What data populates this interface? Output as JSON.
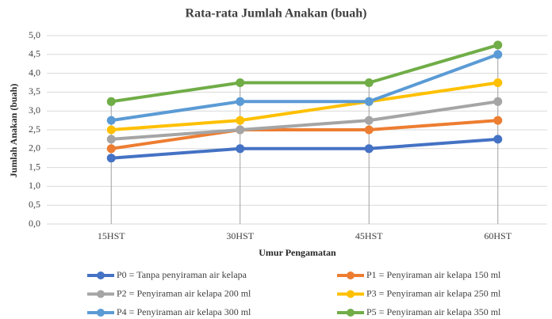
{
  "chart_data": {
    "type": "line",
    "title": "Rata-rata  Jumlah Anakan (buah)",
    "xlabel": "Umur Pengamatan",
    "ylabel": "Jumlah Anakan (buah)",
    "categories": [
      "15HST",
      "30HST",
      "45HST",
      "60HST"
    ],
    "series": [
      {
        "name": "P0 = Tanpa penyiraman air kelapa",
        "color": "#4472c4",
        "values": [
          1.75,
          2.0,
          2.0,
          2.25
        ]
      },
      {
        "name": "P1 = Penyiraman air kelapa 150 ml",
        "color": "#ed7d31",
        "values": [
          2.0,
          2.5,
          2.5,
          2.75
        ]
      },
      {
        "name": "P2 = Penyiraman air kelapa 200 ml",
        "color": "#a5a5a5",
        "values": [
          2.25,
          2.5,
          2.75,
          3.25
        ]
      },
      {
        "name": "P3 = Penyiraman air kelapa 250 ml",
        "color": "#ffc000",
        "values": [
          2.5,
          2.75,
          3.25,
          3.75
        ]
      },
      {
        "name": "P4 = Penyiraman air kelapa 300 ml",
        "color": "#5b9bd5",
        "values": [
          2.75,
          3.25,
          3.25,
          4.5
        ]
      },
      {
        "name": "P5 = Penyiraman air kelapa 350 ml",
        "color": "#70ad47",
        "values": [
          3.25,
          3.75,
          3.75,
          4.75
        ]
      }
    ],
    "ylim": [
      0,
      5
    ],
    "yticks": [
      {
        "value": 0,
        "label": "0,0"
      },
      {
        "value": 0.5,
        "label": "0,5"
      },
      {
        "value": 1,
        "label": "1,0"
      },
      {
        "value": 1.5,
        "label": "1,5"
      },
      {
        "value": 2,
        "label": "2,0"
      },
      {
        "value": 2.5,
        "label": "2,5"
      },
      {
        "value": 3,
        "label": "3,0"
      },
      {
        "value": 3.5,
        "label": "3,5"
      },
      {
        "value": 4,
        "label": "4,0"
      },
      {
        "value": 4.5,
        "label": "4,5"
      },
      {
        "value": 5,
        "label": "5,0"
      }
    ],
    "grid": true,
    "legend": "bottom"
  }
}
